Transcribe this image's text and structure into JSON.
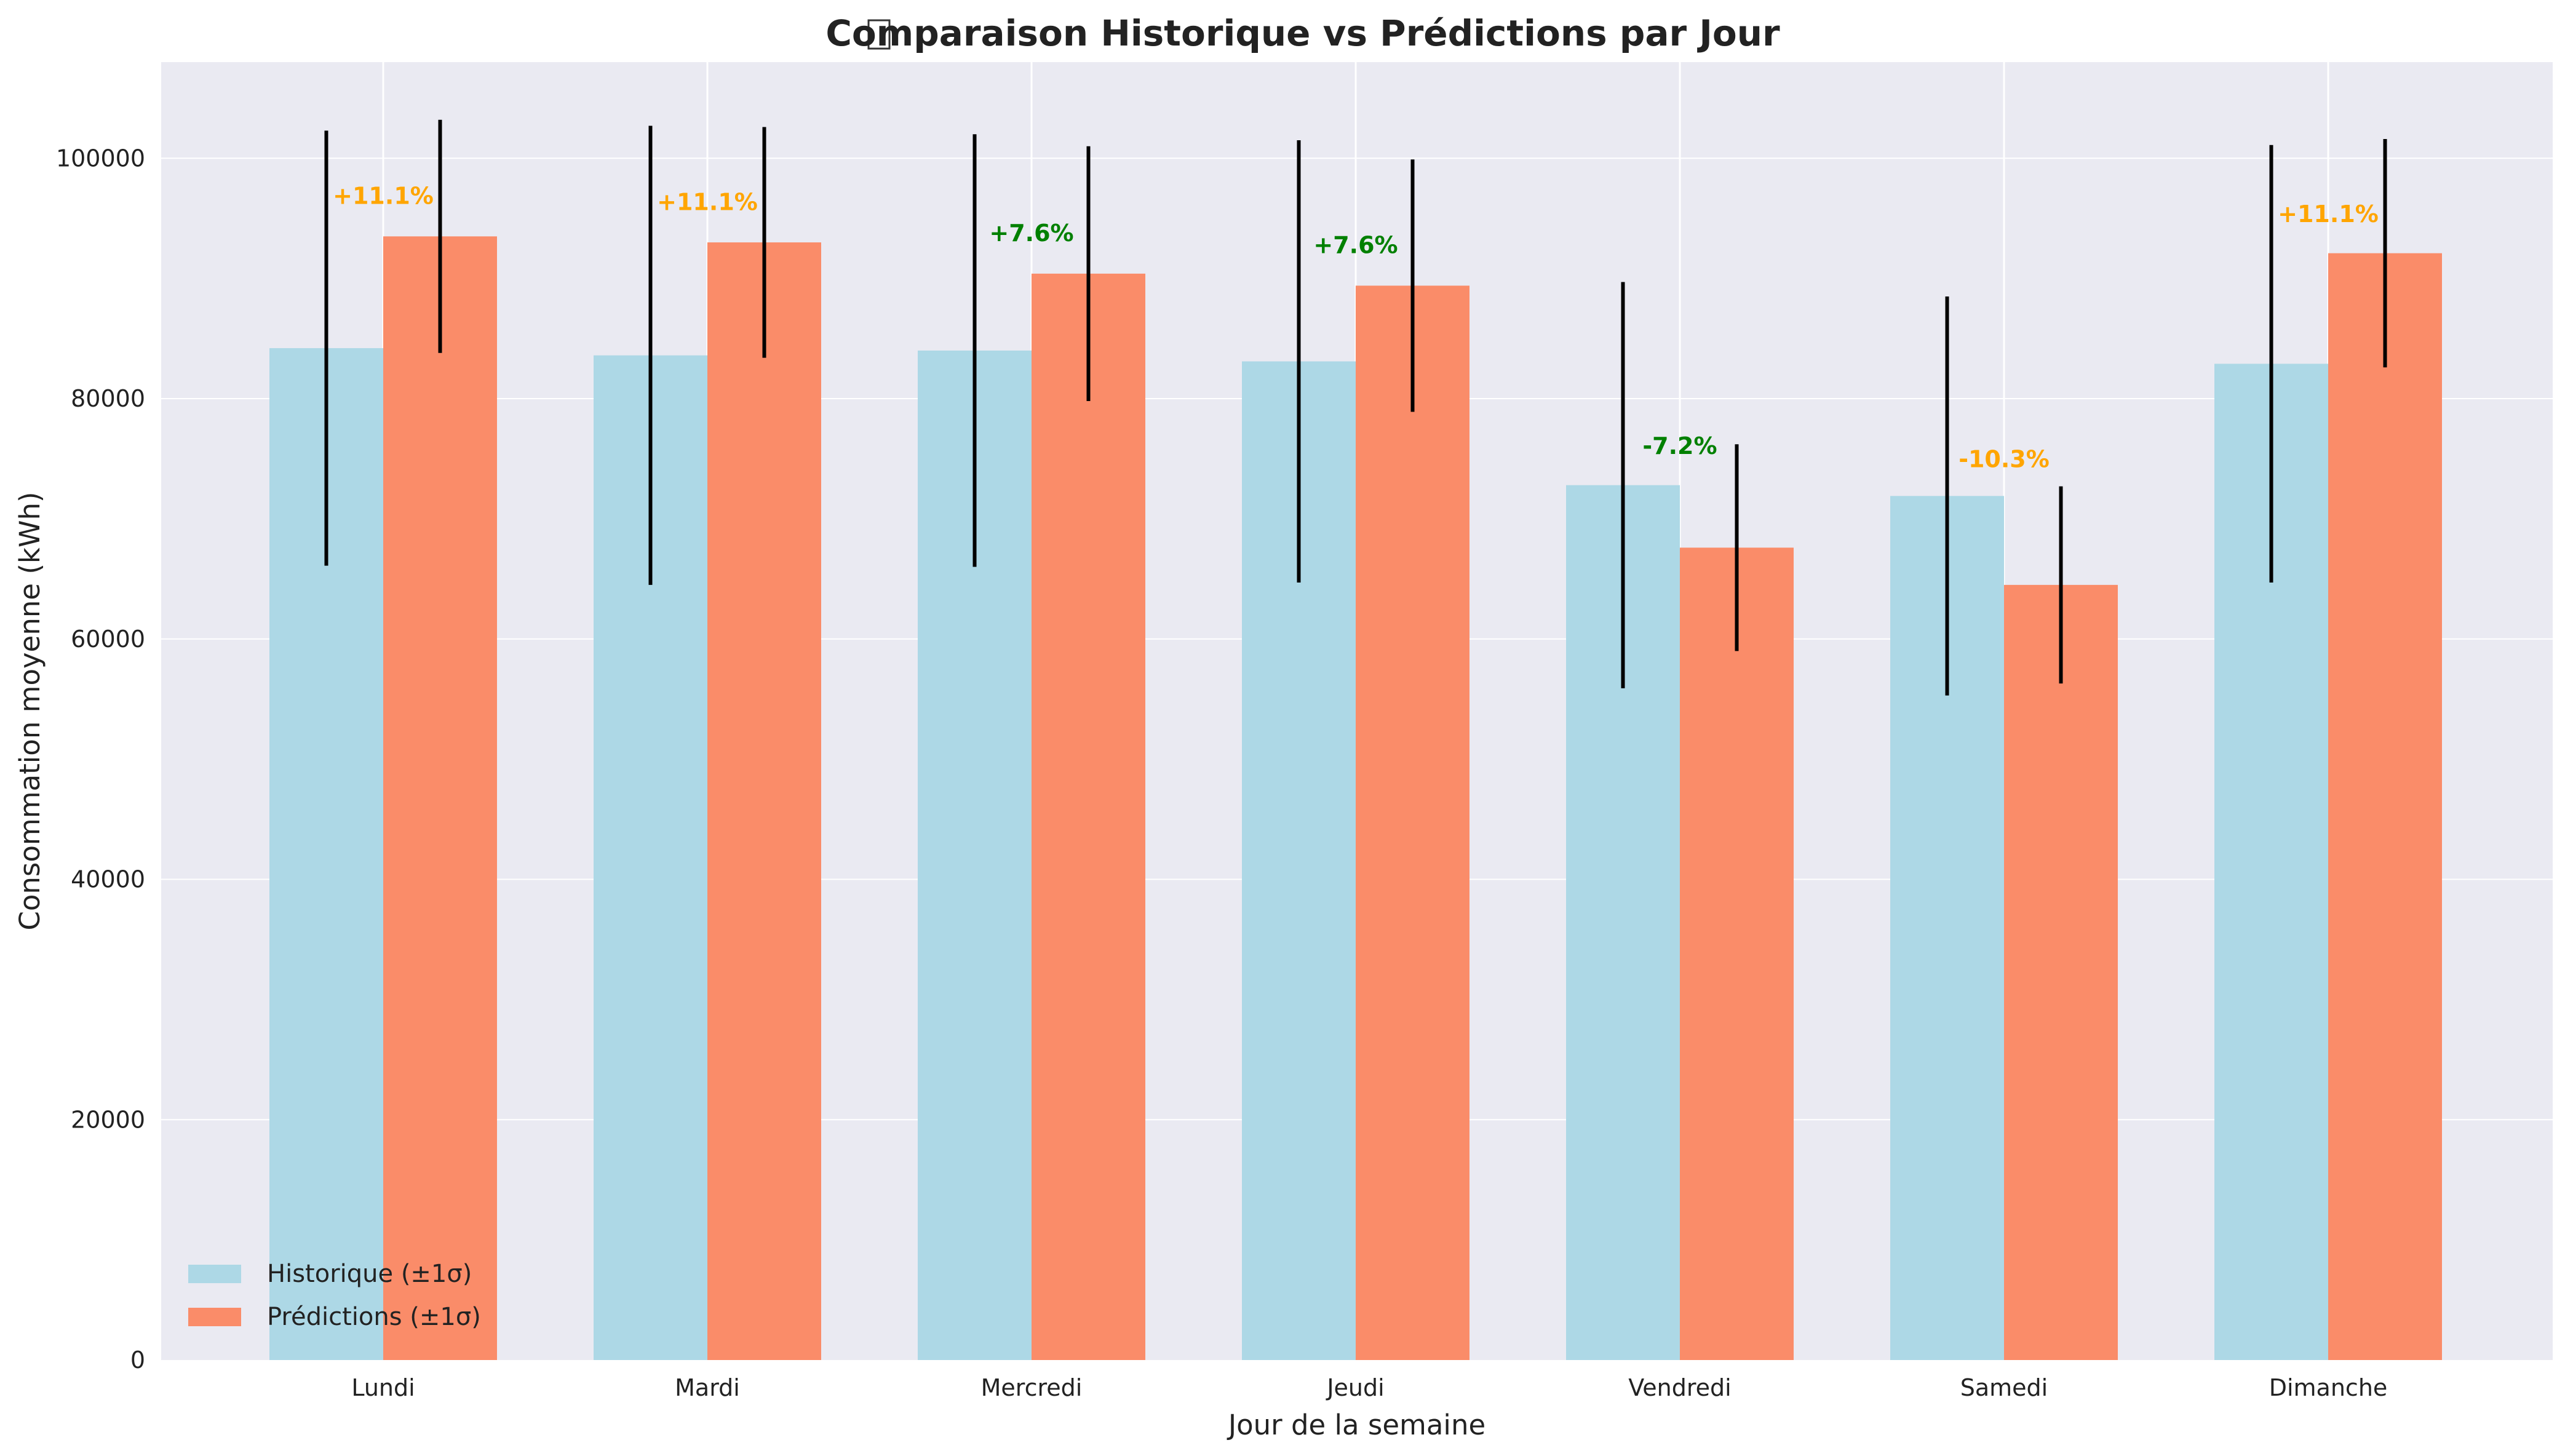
{
  "chart_data": {
    "type": "bar",
    "title": "Comparaison Historique vs Prédictions par Jour",
    "title_icon": "chart-icon",
    "xlabel": "Jour de la semaine",
    "ylabel": "Consommation moyenne (kWh)",
    "ylim": [
      0,
      108000
    ],
    "yticks": [
      0,
      20000,
      40000,
      60000,
      80000,
      100000
    ],
    "ytick_labels": [
      "0",
      "20000",
      "40000",
      "60000",
      "80000",
      "100000"
    ],
    "grid": true,
    "legend_position": "bottom-left",
    "categories": [
      "Lundi",
      "Mardi",
      "Mercredi",
      "Jeudi",
      "Vendredi",
      "Samedi",
      "Dimanche"
    ],
    "series": [
      {
        "name": "Historique (±1σ)",
        "color": "#add8e6",
        "values": [
          84200,
          83600,
          84000,
          83100,
          72800,
          71900,
          82900
        ],
        "error": [
          18100,
          19100,
          18000,
          18400,
          16900,
          16600,
          18200
        ]
      },
      {
        "name": "Prédictions (±1σ)",
        "color": "#fa8c69",
        "values": [
          93500,
          93000,
          90400,
          89400,
          67600,
          64500,
          92100
        ],
        "error": [
          9700,
          9600,
          10600,
          10500,
          8600,
          8200,
          9500
        ]
      }
    ],
    "annotations": [
      {
        "category": "Lundi",
        "label": "+11.1%",
        "color": "#ffa500",
        "y": 96200
      },
      {
        "category": "Mardi",
        "label": "+11.1%",
        "color": "#ffa500",
        "y": 95700
      },
      {
        "category": "Mercredi",
        "label": "+7.6%",
        "color": "#008000",
        "y": 93100
      },
      {
        "category": "Jeudi",
        "label": "+7.6%",
        "color": "#008000",
        "y": 92100
      },
      {
        "category": "Vendredi",
        "label": "-7.2%",
        "color": "#008000",
        "y": 75400
      },
      {
        "category": "Samedi",
        "label": "-10.3%",
        "color": "#ffa500",
        "y": 74300
      },
      {
        "category": "Dimanche",
        "label": "+11.1%",
        "color": "#ffa500",
        "y": 94700
      }
    ],
    "colors": {
      "plot_background": "#eaeaf2",
      "grid": "#ffffff",
      "error_bar": "#000000"
    }
  }
}
